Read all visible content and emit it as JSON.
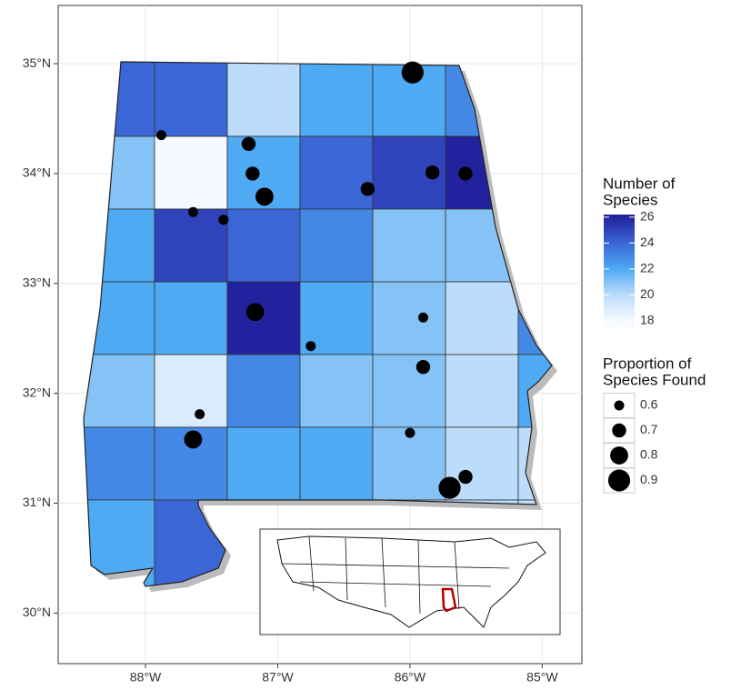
{
  "chart_data": {
    "type": "choropleth",
    "xlim": [
      -88.66,
      -84.7
    ],
    "ylim": [
      29.54,
      35.53
    ],
    "xticks": [
      {
        "value": -88,
        "label": "88°W"
      },
      {
        "value": -87,
        "label": "87°W"
      },
      {
        "value": -86,
        "label": "86°W"
      },
      {
        "value": -85,
        "label": "85°W"
      }
    ],
    "yticks": [
      {
        "value": 35,
        "label": "35°N"
      },
      {
        "value": 34,
        "label": "34°N"
      },
      {
        "value": 33,
        "label": "33°N"
      },
      {
        "value": 32,
        "label": "32°N"
      },
      {
        "value": 31,
        "label": "31°N"
      },
      {
        "value": 30,
        "label": "30°N"
      }
    ],
    "grid": true,
    "color_legend_title": [
      "Number of",
      "Species"
    ],
    "colorlim": [
      17.5,
      26.2
    ],
    "colorticks": [
      18,
      20,
      22,
      24,
      26
    ],
    "colors": [
      "#f6f9ff",
      "#bcdcfb",
      "#4eaaf3",
      "#3a66d6",
      "#23229e"
    ],
    "counties": [
      24,
      24,
      20,
      22,
      22,
      23,
      23,
      21,
      18,
      22,
      24,
      25,
      26,
      26,
      22,
      25,
      24,
      23,
      21,
      21,
      20,
      22,
      22,
      26,
      22,
      21,
      20,
      23,
      21,
      19,
      23,
      21,
      21,
      20,
      22,
      23,
      23,
      22,
      22,
      21,
      20,
      20,
      22,
      24,
      22,
      22,
      20,
      20,
      20
    ],
    "size_legend_title": [
      "Proportion of",
      "Species Found"
    ],
    "size_ticks": [
      0.6,
      0.7,
      0.8,
      0.9
    ],
    "sites": [
      {
        "lon": -85.98,
        "lat": 34.92,
        "proportion": 0.9
      },
      {
        "lon": -87.88,
        "lat": 34.35,
        "proportion": 0.6
      },
      {
        "lon": -87.22,
        "lat": 34.27,
        "proportion": 0.7
      },
      {
        "lon": -87.19,
        "lat": 34.0,
        "proportion": 0.7
      },
      {
        "lon": -87.1,
        "lat": 33.79,
        "proportion": 0.8
      },
      {
        "lon": -87.64,
        "lat": 33.65,
        "proportion": 0.6
      },
      {
        "lon": -87.41,
        "lat": 33.58,
        "proportion": 0.6
      },
      {
        "lon": -86.32,
        "lat": 33.86,
        "proportion": 0.7
      },
      {
        "lon": -85.83,
        "lat": 34.01,
        "proportion": 0.7
      },
      {
        "lon": -85.58,
        "lat": 34.0,
        "proportion": 0.7
      },
      {
        "lon": -87.17,
        "lat": 32.74,
        "proportion": 0.8
      },
      {
        "lon": -86.75,
        "lat": 32.43,
        "proportion": 0.6
      },
      {
        "lon": -85.9,
        "lat": 32.69,
        "proportion": 0.6
      },
      {
        "lon": -85.9,
        "lat": 32.24,
        "proportion": 0.7
      },
      {
        "lon": -87.59,
        "lat": 31.81,
        "proportion": 0.6
      },
      {
        "lon": -87.64,
        "lat": 31.58,
        "proportion": 0.8
      },
      {
        "lon": -86.0,
        "lat": 31.64,
        "proportion": 0.6
      },
      {
        "lon": -85.7,
        "lat": 31.14,
        "proportion": 0.9
      },
      {
        "lon": -85.58,
        "lat": 31.24,
        "proportion": 0.7
      }
    ]
  }
}
